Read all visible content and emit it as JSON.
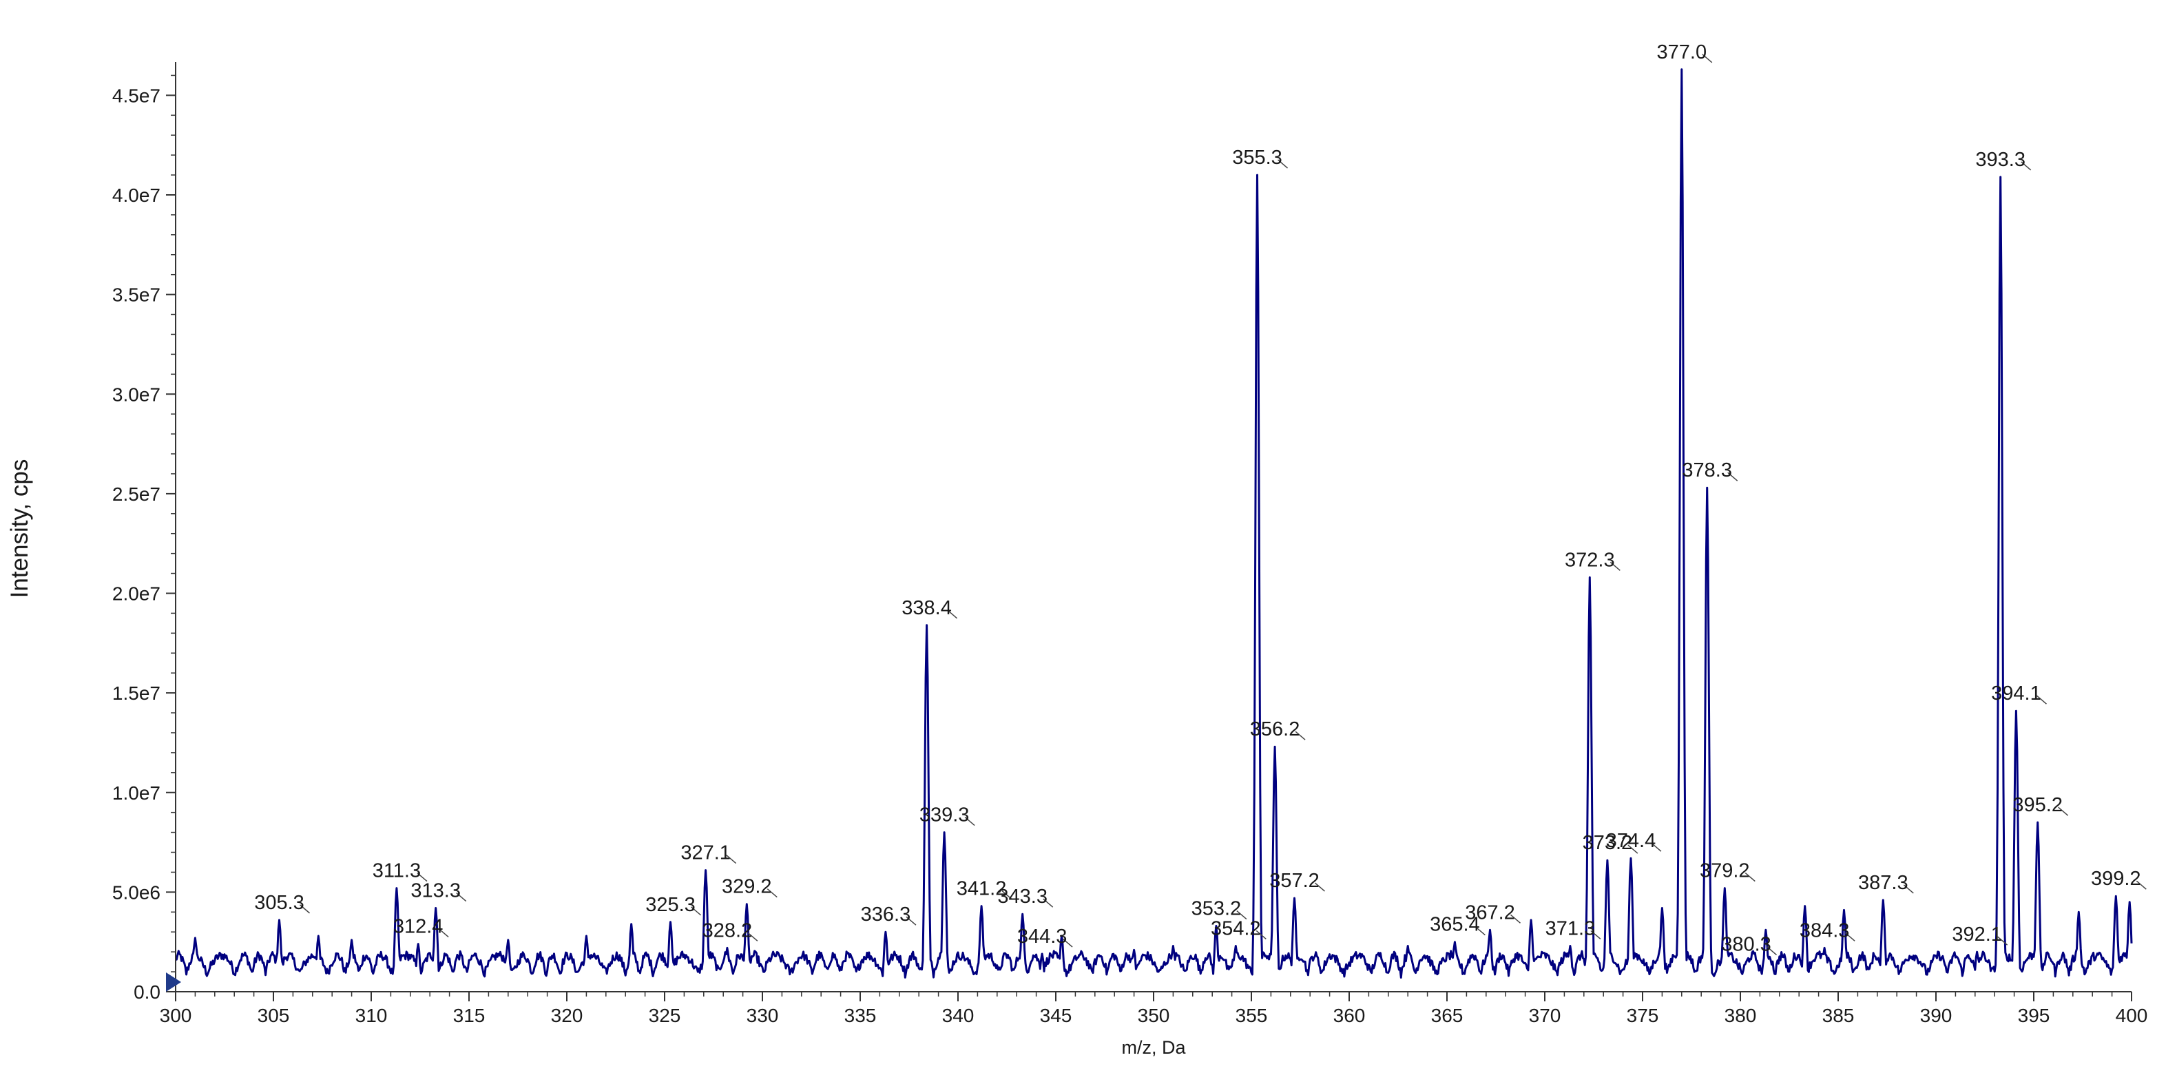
{
  "chart_data": {
    "type": "line",
    "title": "",
    "xlabel": "m/z, Da",
    "ylabel": "Intensity, cps",
    "xlim": [
      300,
      400
    ],
    "ylim": [
      0,
      46500000
    ],
    "grid": false,
    "legend": "none",
    "line_color": "#00007f",
    "x_ticks": [
      300,
      305,
      310,
      315,
      320,
      325,
      330,
      335,
      340,
      345,
      350,
      355,
      360,
      365,
      370,
      375,
      380,
      385,
      390,
      395,
      400
    ],
    "x_tick_labels": [
      "300",
      "305",
      "310",
      "315",
      "320",
      "325",
      "330",
      "335",
      "340",
      "345",
      "350",
      "355",
      "360",
      "365",
      "370",
      "375",
      "380",
      "385",
      "390",
      "395",
      "400"
    ],
    "y_ticks": [
      0,
      5000000,
      10000000,
      15000000,
      20000000,
      25000000,
      30000000,
      35000000,
      40000000,
      45000000
    ],
    "y_tick_labels": [
      "0.0",
      "5.0e6",
      "1.0e7",
      "1.5e7",
      "2.0e7",
      "2.5e7",
      "3.0e7",
      "3.5e7",
      "4.0e7",
      "4.5e7"
    ],
    "peaks": [
      {
        "x": 301.0,
        "y": 2700000
      },
      {
        "x": 305.3,
        "y": 3600000,
        "label": "305.3"
      },
      {
        "x": 307.3,
        "y": 2800000
      },
      {
        "x": 309.0,
        "y": 2600000
      },
      {
        "x": 311.3,
        "y": 5200000,
        "label": "311.3"
      },
      {
        "x": 312.4,
        "y": 2400000,
        "label": "312.4"
      },
      {
        "x": 313.3,
        "y": 4200000,
        "label": "313.3"
      },
      {
        "x": 317.0,
        "y": 2600000
      },
      {
        "x": 321.0,
        "y": 2800000
      },
      {
        "x": 323.3,
        "y": 3400000
      },
      {
        "x": 325.3,
        "y": 3500000,
        "label": "325.3"
      },
      {
        "x": 327.1,
        "y": 6100000,
        "label": "327.1"
      },
      {
        "x": 328.2,
        "y": 2200000,
        "label": "328.2"
      },
      {
        "x": 329.2,
        "y": 4400000,
        "label": "329.2"
      },
      {
        "x": 336.3,
        "y": 3000000,
        "label": "336.3"
      },
      {
        "x": 338.4,
        "y": 18400000,
        "label": "338.4"
      },
      {
        "x": 339.3,
        "y": 8000000,
        "label": "339.3"
      },
      {
        "x": 341.2,
        "y": 4300000,
        "label": "341.2"
      },
      {
        "x": 343.3,
        "y": 3900000,
        "label": "343.3"
      },
      {
        "x": 344.3,
        "y": 1900000,
        "label": "344.3"
      },
      {
        "x": 345.3,
        "y": 2800000
      },
      {
        "x": 349.0,
        "y": 2100000
      },
      {
        "x": 351.0,
        "y": 2300000
      },
      {
        "x": 353.2,
        "y": 3300000,
        "label": "353.2"
      },
      {
        "x": 354.2,
        "y": 2300000,
        "label": "354.2"
      },
      {
        "x": 355.3,
        "y": 41000000,
        "label": "355.3"
      },
      {
        "x": 356.2,
        "y": 12300000,
        "label": "356.2"
      },
      {
        "x": 357.2,
        "y": 4700000,
        "label": "357.2"
      },
      {
        "x": 363.0,
        "y": 2300000
      },
      {
        "x": 365.4,
        "y": 2500000,
        "label": "365.4"
      },
      {
        "x": 367.2,
        "y": 3100000,
        "label": "367.2"
      },
      {
        "x": 369.3,
        "y": 3600000
      },
      {
        "x": 371.3,
        "y": 2300000,
        "label": "371.3"
      },
      {
        "x": 372.3,
        "y": 20800000,
        "label": "372.3"
      },
      {
        "x": 373.2,
        "y": 6600000,
        "label": "373.2"
      },
      {
        "x": 374.4,
        "y": 6700000,
        "label": "374.4"
      },
      {
        "x": 376.0,
        "y": 4200000
      },
      {
        "x": 377.0,
        "y": 46300000,
        "label": "377.0"
      },
      {
        "x": 378.3,
        "y": 25300000,
        "label": "378.3"
      },
      {
        "x": 379.2,
        "y": 5200000,
        "label": "379.2"
      },
      {
        "x": 380.3,
        "y": 1500000,
        "label": "380.3"
      },
      {
        "x": 381.3,
        "y": 3100000
      },
      {
        "x": 383.3,
        "y": 4300000
      },
      {
        "x": 384.3,
        "y": 2200000,
        "label": "384.3"
      },
      {
        "x": 385.3,
        "y": 4100000
      },
      {
        "x": 387.3,
        "y": 4600000,
        "label": "387.3"
      },
      {
        "x": 392.1,
        "y": 2000000,
        "label": "392.1"
      },
      {
        "x": 393.3,
        "y": 40900000,
        "label": "393.3"
      },
      {
        "x": 394.1,
        "y": 14100000,
        "label": "394.1"
      },
      {
        "x": 395.2,
        "y": 8500000,
        "label": "395.2"
      },
      {
        "x": 397.3,
        "y": 4000000
      },
      {
        "x": 399.2,
        "y": 4800000,
        "label": "399.2"
      },
      {
        "x": 399.9,
        "y": 4500000
      }
    ]
  }
}
